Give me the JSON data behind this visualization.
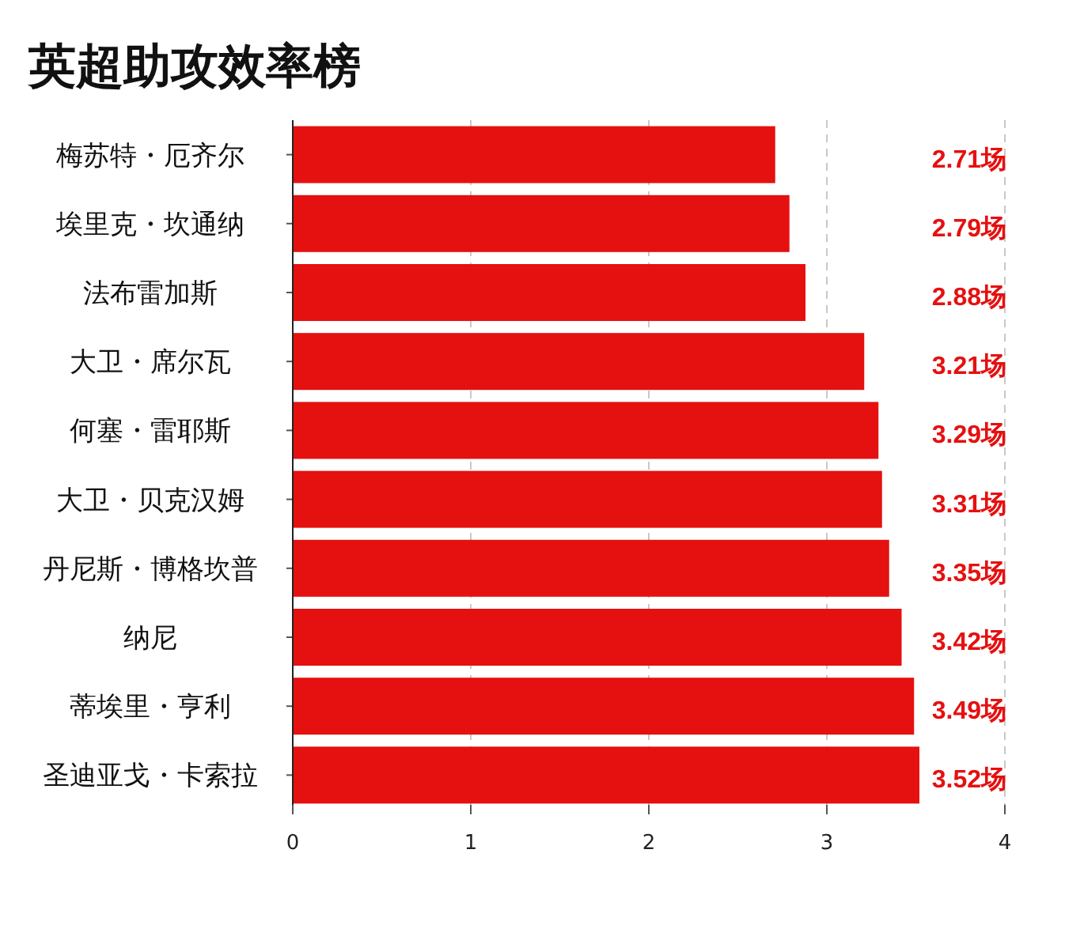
{
  "chart_data": {
    "type": "bar",
    "orientation": "horizontal",
    "title": "英超助攻效率榜",
    "categories": [
      "梅苏特・厄齐尔",
      "埃里克・坎通纳",
      "法布雷加斯",
      "大卫・席尔瓦",
      "何塞・雷耶斯",
      "大卫・贝克汉姆",
      "丹尼斯・博格坎普",
      "纳尼",
      "蒂埃里・亨利",
      "圣迪亚戈・卡索拉"
    ],
    "values": [
      2.71,
      2.79,
      2.88,
      3.21,
      3.29,
      3.31,
      3.35,
      3.42,
      3.49,
      3.52
    ],
    "value_labels": [
      "2.71场",
      "2.79场",
      "2.88场",
      "3.21场",
      "3.29场",
      "3.31场",
      "3.35场",
      "3.42场",
      "3.49场",
      "3.52场"
    ],
    "color": "#e51010",
    "xlim": [
      0,
      4
    ],
    "xticks": [
      0,
      1,
      2,
      3,
      4
    ],
    "grid": "x"
  }
}
